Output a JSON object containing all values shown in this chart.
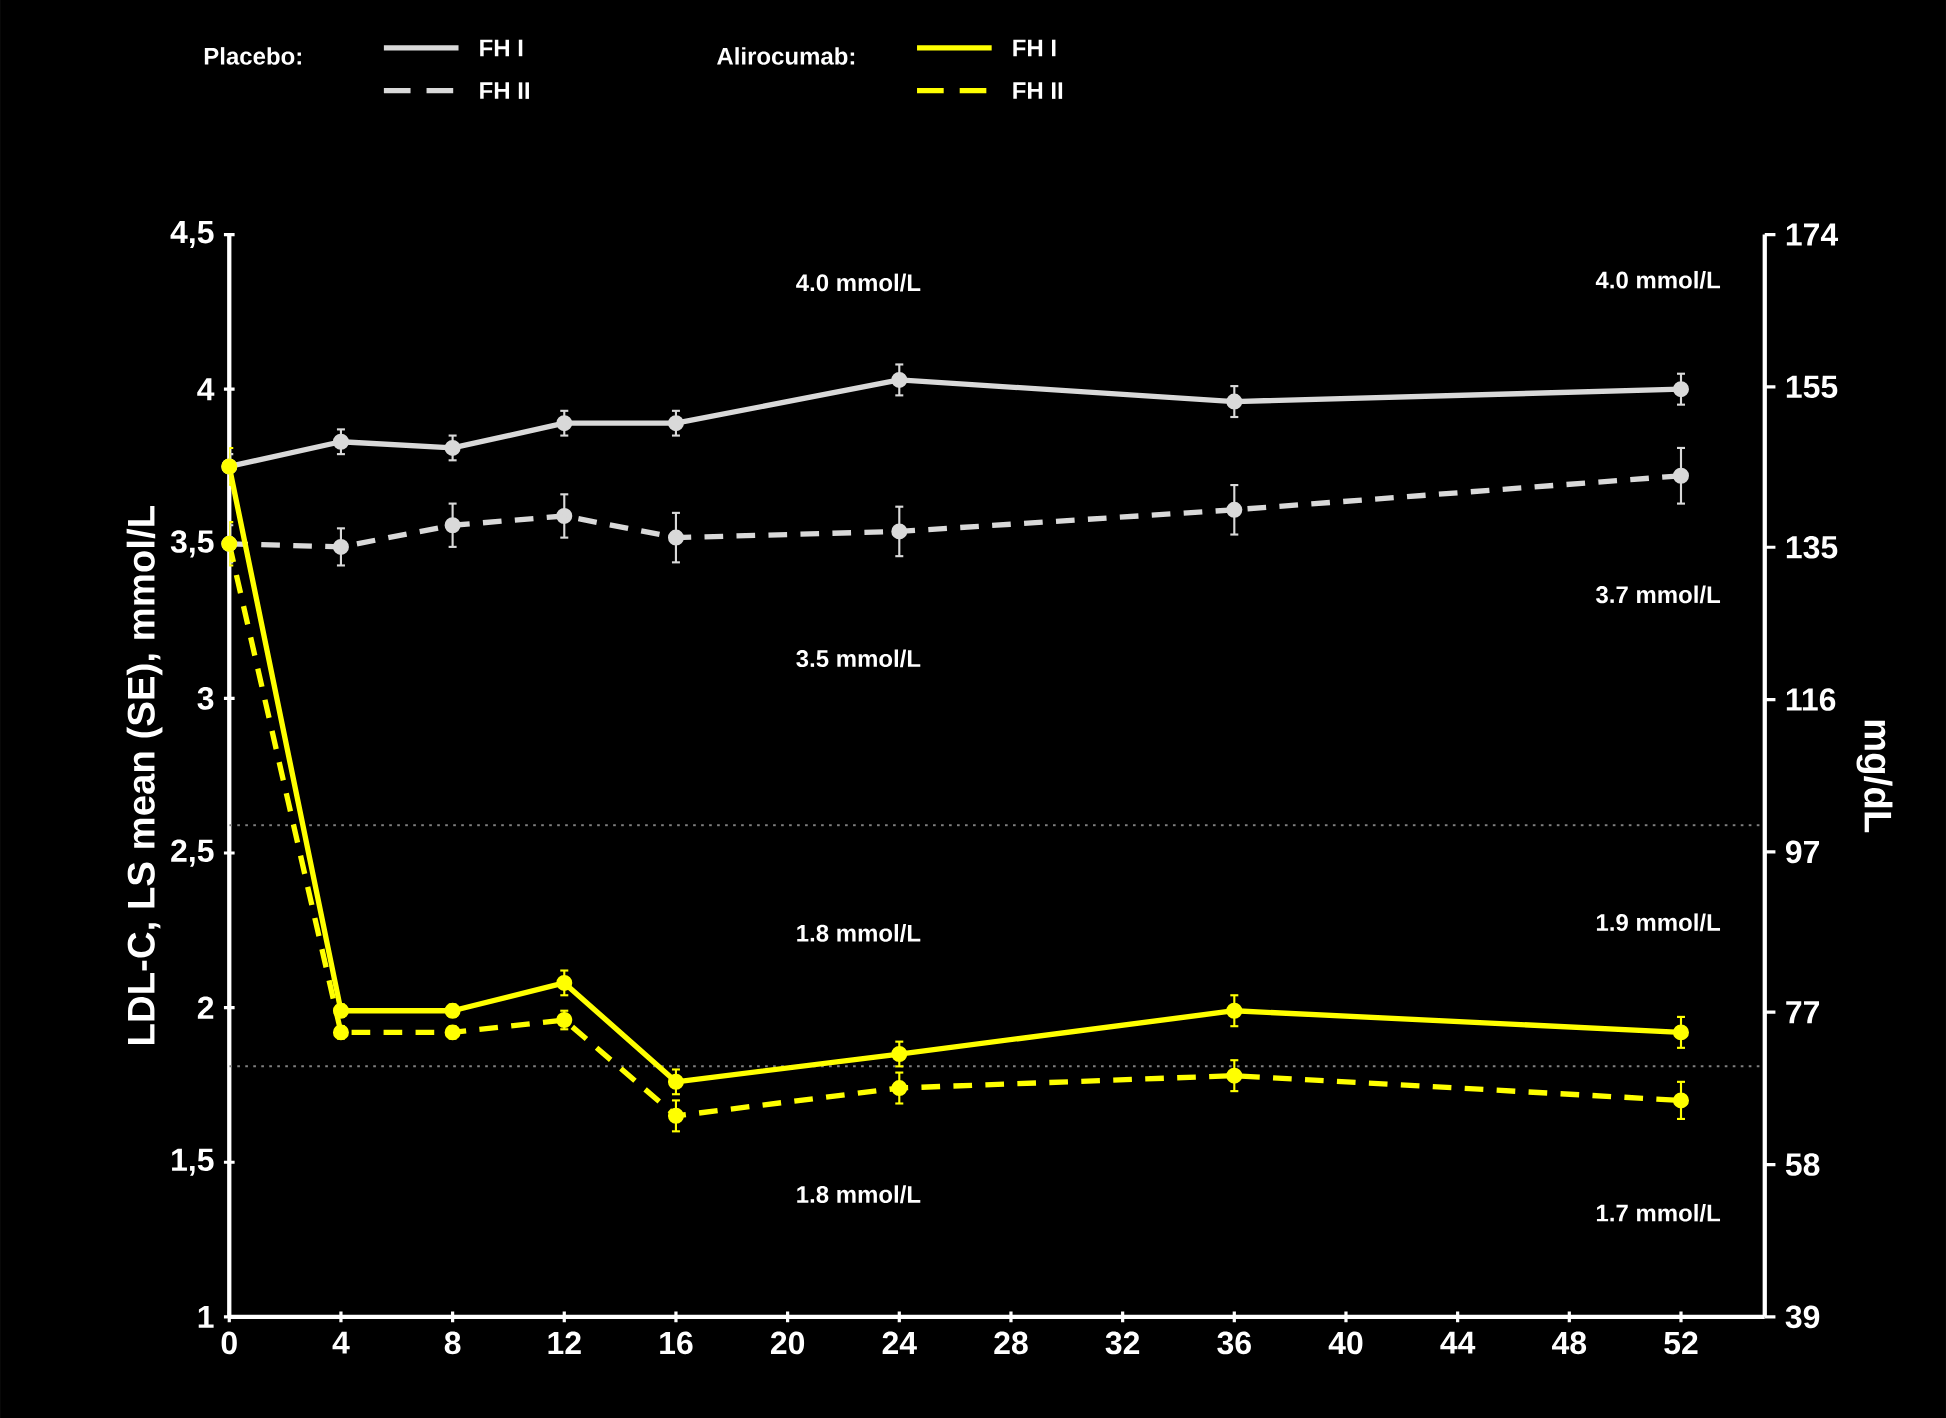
{
  "chart_data": {
    "type": "line",
    "ylabel": "LDL-C, LS mean (SE), mmol/L",
    "y2label": "mg/dL",
    "x": [
      0,
      4,
      8,
      12,
      16,
      24,
      36,
      52
    ],
    "xlim": [
      0,
      55
    ],
    "xticks": [
      0,
      4,
      8,
      12,
      16,
      20,
      24,
      28,
      32,
      36,
      40,
      44,
      48,
      52
    ],
    "ylim": [
      1,
      4.5
    ],
    "yticks": [
      {
        "value": 1,
        "label": "1"
      },
      {
        "value": 1.5,
        "label": "1,5"
      },
      {
        "value": 2,
        "label": "2"
      },
      {
        "value": 2.5,
        "label": "2,5"
      },
      {
        "value": 3,
        "label": "3"
      },
      {
        "value": 3.5,
        "label": "3,5"
      },
      {
        "value": 4,
        "label": "4"
      },
      {
        "value": 4.5,
        "label": "4,5"
      }
    ],
    "y2lim": [
      39,
      174
    ],
    "y2ticks": [
      39,
      58,
      77,
      97,
      116,
      135,
      155,
      174
    ],
    "marker": "circle",
    "grid": false,
    "legend": "top",
    "series": [
      {
        "name": "FH I",
        "color": "#d9d9d9",
        "line_style": "solid",
        "values": [
          3.75,
          3.83,
          3.81,
          3.89,
          3.89,
          4.03,
          3.96,
          4.0
        ],
        "errors": [
          0.04,
          0.04,
          0.04,
          0.04,
          0.04,
          0.05,
          0.05,
          0.05
        ]
      },
      {
        "name": "FH II",
        "color": "#d9d9d9",
        "line_style": "dashed",
        "values": [
          3.5,
          3.49,
          3.56,
          3.59,
          3.52,
          3.54,
          3.61,
          3.72
        ],
        "errors": [
          0.06,
          0.06,
          0.07,
          0.07,
          0.08,
          0.08,
          0.08,
          0.09
        ]
      },
      {
        "name": "FH I",
        "color": "#ffff00",
        "line_style": "solid",
        "values": [
          3.75,
          1.99,
          1.99,
          2.08,
          1.76,
          1.85,
          1.99,
          1.92
        ],
        "errors": [
          0.06,
          0.02,
          0.02,
          0.04,
          0.04,
          0.04,
          0.05,
          0.05
        ]
      },
      {
        "name": "FH II",
        "color": "#ffff00",
        "line_style": "dashed",
        "values": [
          3.5,
          1.92,
          1.92,
          1.96,
          1.65,
          1.74,
          1.78,
          1.7
        ],
        "errors": [
          0.07,
          0.02,
          0.02,
          0.03,
          0.05,
          0.05,
          0.05,
          0.06
        ]
      }
    ],
    "ref_lines": [
      {
        "axis": "y",
        "value": 2.59,
        "color": "#808080",
        "line_style": "dotted"
      },
      {
        "axis": "y",
        "value": 1.81,
        "color": "#808080",
        "line_style": "dotted"
      }
    ],
    "annotations": [
      "Placebo:",
      "Alirocumab:",
      "4.0 mmol/L",
      "3.5 mmol/L",
      "1.8 mmol/L",
      "1.8 mmol/L",
      "4.0 mmol/L",
      "3.7 mmol/L",
      "1.9 mmol/L",
      "1.7 mmol/L"
    ]
  }
}
